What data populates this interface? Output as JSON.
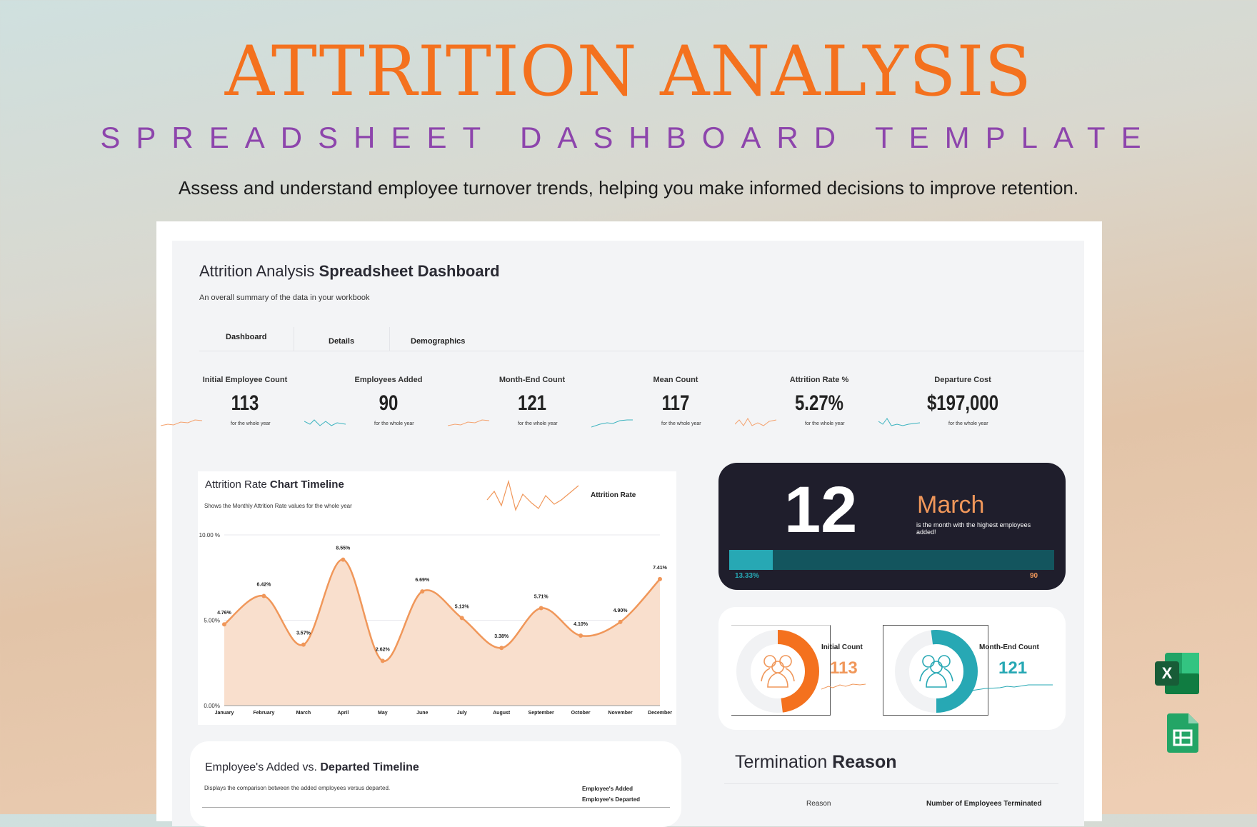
{
  "hero": {
    "title": "ATTRITION ANALYSIS",
    "subtitle": "SPREADSHEET DASHBOARD TEMPLATE",
    "tagline": "Assess and understand employee turnover trends, helping you make informed decisions to improve retention."
  },
  "dashboard": {
    "title_light": "Attrition Analysis ",
    "title_bold": "Spreadsheet Dashboard",
    "subtitle": "An overall summary of the data in your workbook",
    "tabs": [
      "Dashboard",
      "Details",
      "Demographics"
    ],
    "kpis": [
      {
        "label": "Initial Employee Count",
        "value": "113",
        "note": "for the whole year",
        "color": "#f4a26e"
      },
      {
        "label": "Employees Added",
        "value": "90",
        "note": "for the whole year",
        "color": "#3bb3bf"
      },
      {
        "label": "Month-End Count",
        "value": "121",
        "note": "for the whole year",
        "color": "#f4a26e"
      },
      {
        "label": "Mean Count",
        "value": "117",
        "note": "for the whole year",
        "color": "#3bb3bf"
      },
      {
        "label": "Attrition Rate %",
        "value": "5.27%",
        "note": "for the whole year",
        "color": "#f4a26e"
      },
      {
        "label": "Departure Cost",
        "value": "$197,000",
        "note": "for the whole year",
        "color": "#3bb3bf"
      }
    ]
  },
  "chart_data": {
    "type": "area",
    "title_light": "Attrition Rate ",
    "title_bold": "Chart Timeline",
    "subtitle": "Shows the Monthly Attrition Rate values for the whole year",
    "legend": "Attrition Rate",
    "categories": [
      "January",
      "February",
      "March",
      "April",
      "May",
      "June",
      "July",
      "August",
      "September",
      "October",
      "November",
      "December"
    ],
    "values": [
      4.76,
      6.42,
      3.57,
      8.55,
      2.62,
      6.69,
      5.13,
      3.38,
      5.71,
      4.1,
      4.9,
      7.41
    ],
    "labels": [
      "4.76%",
      "6.42%",
      "3.57%",
      "8.55%",
      "2.62%",
      "6.69%",
      "5.13%",
      "3.38%",
      "5.71%",
      "4.10%",
      "4.90%",
      "7.41%"
    ],
    "yticks": [
      "0.00%",
      "5.00%",
      "10.00 %"
    ],
    "ylim": [
      0,
      10
    ],
    "grid": true,
    "color": "#f0975a",
    "fill": "#f9dfcd"
  },
  "highlight": {
    "number": "12",
    "month": "March",
    "caption": "is the month with the highest employees added!",
    "progress_label": "13.33%",
    "progress": 0.1333,
    "total": "90"
  },
  "counts": {
    "initial_label": "Initial Count",
    "initial_value": "113",
    "initial_fill": 0.48,
    "end_label": "Month-End Count",
    "end_value": "121",
    "end_fill": 0.52
  },
  "termination": {
    "title_light": "Termination ",
    "title_bold": "Reason",
    "col_reason": "Reason",
    "col_count": "Number of Employees Terminated"
  },
  "timeline": {
    "title_light": "Employee's Added vs. ",
    "title_bold": "Departed Timeline",
    "subtitle": "Displays the comparison between the added employees versus departed.",
    "legend": [
      "Employee's Added",
      "Employee's Departed"
    ]
  },
  "colors": {
    "orange": "#f4711e",
    "purple": "#8d45ac",
    "teal": "#27a8b4",
    "dark": "#1f1e2c"
  }
}
